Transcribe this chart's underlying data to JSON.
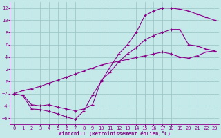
{
  "xlabel": "Windchill (Refroidissement éolien,°C)",
  "bg_color": "#c5e8e8",
  "grid_color": "#9ec8c8",
  "line_color": "#880088",
  "xlim": [
    -0.5,
    23.5
  ],
  "ylim": [
    -7,
    13
  ],
  "xticks": [
    0,
    1,
    2,
    3,
    4,
    5,
    6,
    7,
    8,
    9,
    10,
    11,
    12,
    13,
    14,
    15,
    16,
    17,
    18,
    19,
    20,
    21,
    22,
    23
  ],
  "yticks": [
    -6,
    -4,
    -2,
    0,
    2,
    4,
    6,
    8,
    10,
    12
  ],
  "curve1_x": [
    0,
    1,
    2,
    3,
    4,
    5,
    6,
    7,
    8,
    9,
    10,
    11,
    12,
    13,
    14,
    15,
    16,
    17,
    18,
    19,
    20,
    21,
    22,
    23
  ],
  "curve1_y": [
    -2.0,
    -2.3,
    -4.5,
    -4.6,
    -4.9,
    -5.3,
    -5.8,
    -6.2,
    -4.8,
    -2.2,
    0.0,
    2.3,
    4.5,
    6.0,
    8.0,
    10.8,
    11.5,
    12.0,
    12.0,
    11.8,
    11.5,
    11.0,
    10.5,
    10.0
  ],
  "curve2_x": [
    1,
    2,
    3,
    4,
    5,
    6,
    7,
    8,
    9,
    10,
    11,
    12,
    13,
    14,
    15,
    16,
    17,
    18,
    19,
    20,
    21,
    22,
    23
  ],
  "curve2_y": [
    -2.2,
    -3.8,
    -4.0,
    -3.8,
    -4.2,
    -4.5,
    -4.8,
    -4.5,
    -3.8,
    0.2,
    1.5,
    3.2,
    4.5,
    5.5,
    6.8,
    7.5,
    8.0,
    8.5,
    8.5,
    6.0,
    5.8,
    5.3,
    5.0
  ],
  "curve3_x": [
    0,
    1,
    2,
    3,
    4,
    5,
    6,
    7,
    8,
    9,
    10,
    11,
    12,
    13,
    14,
    15,
    16,
    17,
    18,
    19,
    20,
    21,
    22,
    23
  ],
  "curve3_y": [
    -2.0,
    -1.5,
    -1.2,
    -0.8,
    -0.3,
    0.2,
    0.7,
    1.2,
    1.7,
    2.2,
    2.7,
    3.0,
    3.3,
    3.6,
    3.9,
    4.2,
    4.5,
    4.8,
    4.5,
    4.0,
    3.8,
    4.2,
    4.8,
    5.0
  ]
}
